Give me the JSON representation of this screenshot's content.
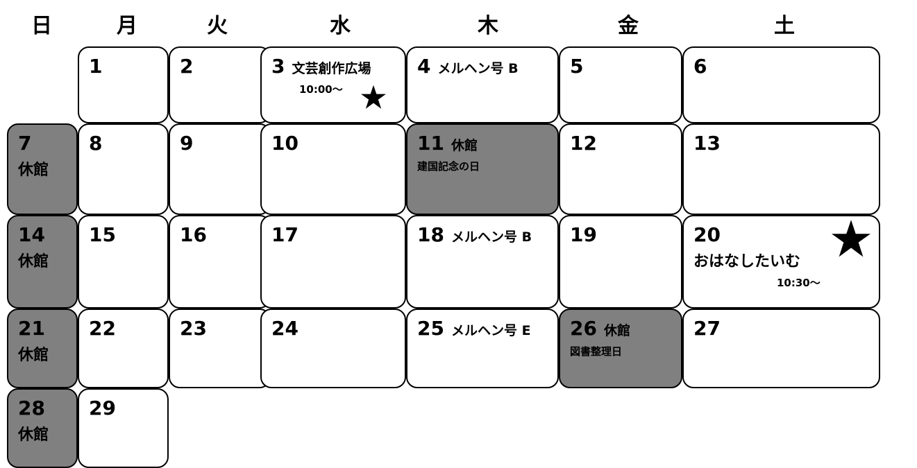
{
  "weekdays": [
    "日",
    "月",
    "火",
    "水",
    "木",
    "金",
    "土"
  ],
  "cells": [
    {
      "day": 1
    },
    {
      "day": 2
    },
    {
      "day": 3,
      "notes": [
        "文芸創作広場",
        "10:00～"
      ]
    },
    {
      "day": 4,
      "notes": [
        "メルヘン号 B"
      ]
    },
    {
      "day": 5
    },
    {
      "day": 6
    },
    {
      "day": 7,
      "notes": [
        "休館"
      ]
    },
    {
      "day": 8
    },
    {
      "day": 9
    },
    {
      "day": 10
    },
    {
      "day": 11,
      "notes": [
        "休館",
        "建国記念の日"
      ]
    },
    {
      "day": 12
    },
    {
      "day": 13
    },
    {
      "day": 14,
      "notes": [
        "休館"
      ]
    },
    {
      "day": 15
    },
    {
      "day": 16
    },
    {
      "day": 17
    },
    {
      "day": 18,
      "notes": [
        "メルヘン号 B"
      ]
    },
    {
      "day": 19
    },
    {
      "day": 20,
      "notes": [
        "おはなしたいむ",
        "10:30～"
      ]
    },
    {
      "day": 21,
      "notes": [
        "休館"
      ]
    },
    {
      "day": 22
    },
    {
      "day": 23
    },
    {
      "day": 24
    },
    {
      "day": 25,
      "notes": [
        "メルヘン号 E"
      ]
    },
    {
      "day": 26,
      "notes": [
        "休館",
        "図書整理日"
      ]
    },
    {
      "day": 27
    },
    {
      "day": 28,
      "notes": [
        "休館"
      ]
    },
    {
      "day": 29
    }
  ]
}
